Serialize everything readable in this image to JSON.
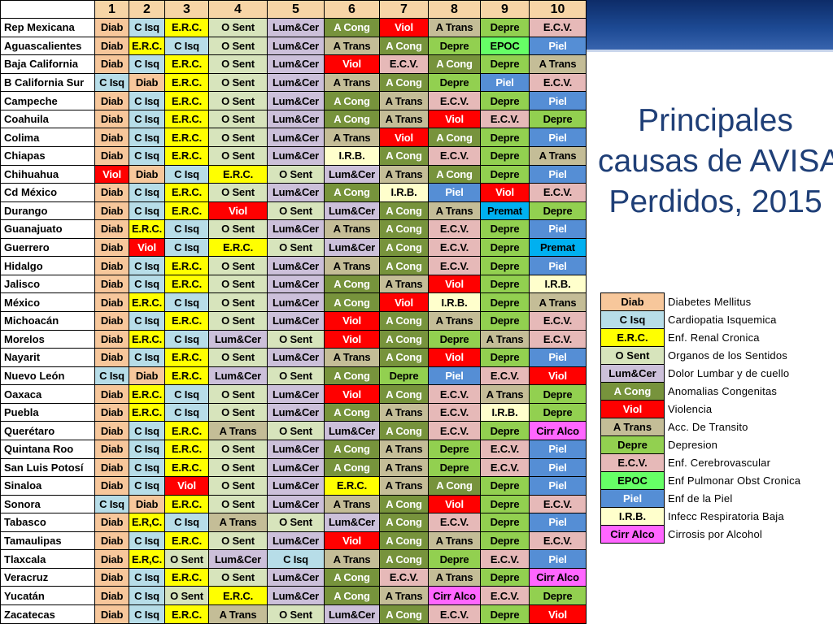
{
  "title_lines": [
    "Principales",
    "causas de AVISA",
    "Perdidos,  2015"
  ],
  "column_headers": [
    "1",
    "2",
    "3",
    "4",
    "5",
    "6",
    "7",
    "8",
    "9",
    "10"
  ],
  "rows": [
    {
      "state": "Rep Mexicana",
      "causes": [
        "Diab",
        "C Isq",
        "E.R.C.",
        "O Sent",
        "Lum&Cer",
        "A Cong",
        "Viol",
        "A Trans",
        "Depre",
        "E.C.V."
      ]
    },
    {
      "state": "Aguascalientes",
      "causes": [
        "Diab",
        "E.R.C.",
        "C Isq",
        "O Sent",
        "Lum&Cer",
        "A Trans",
        "A Cong",
        "Depre",
        "EPOC",
        "Piel"
      ]
    },
    {
      "state": "Baja California",
      "causes": [
        "Diab",
        "C Isq",
        "E.R.C.",
        "O Sent",
        "Lum&Cer",
        "Viol",
        "E.C.V.",
        "A Cong",
        "Depre",
        "A Trans"
      ]
    },
    {
      "state": "B California Sur",
      "causes": [
        "C Isq",
        "Diab",
        "E.R.C.",
        "O Sent",
        "Lum&Cer",
        "A Trans",
        "A Cong",
        "Depre",
        "Piel",
        "E.C.V."
      ]
    },
    {
      "state": "Campeche",
      "causes": [
        "Diab",
        "C Isq",
        "E.R.C.",
        "O Sent",
        "Lum&Cer",
        "A Cong",
        "A Trans",
        "E.C.V.",
        "Depre",
        "Piel"
      ]
    },
    {
      "state": "Coahuila",
      "causes": [
        "Diab",
        "C Isq",
        "E.R.C.",
        "O Sent",
        "Lum&Cer",
        "A Cong",
        "A Trans",
        "Viol",
        "E.C.V.",
        "Depre"
      ]
    },
    {
      "state": "Colima",
      "causes": [
        "Diab",
        "C Isq",
        "E.R.C.",
        "O Sent",
        "Lum&Cer",
        "A Trans",
        "Viol",
        "A Cong",
        "Depre",
        "Piel"
      ]
    },
    {
      "state": "Chiapas",
      "causes": [
        "Diab",
        "C Isq",
        "E.R.C.",
        "O Sent",
        "Lum&Cer",
        "I.R.B.",
        "A Cong",
        "E.C.V.",
        "Depre",
        "A Trans"
      ]
    },
    {
      "state": "Chihuahua",
      "causes": [
        "Viol",
        "Diab",
        "C Isq",
        "E.R.C.",
        "O Sent",
        "Lum&Cer",
        "A Trans",
        "A Cong",
        "Depre",
        "Piel"
      ]
    },
    {
      "state": "Cd México",
      "causes": [
        "Diab",
        "C Isq",
        "E.R.C.",
        "O Sent",
        "Lum&Cer",
        "A Cong",
        "I.R.B.",
        "Piel",
        "Viol",
        "E.C.V."
      ]
    },
    {
      "state": "Durango",
      "causes": [
        "Diab",
        "C Isq",
        "E.R.C.",
        "Viol",
        "O Sent",
        "Lum&Cer",
        "A Cong",
        "A Trans",
        "Premat",
        "Depre"
      ]
    },
    {
      "state": "Guanajuato",
      "causes": [
        "Diab",
        "E.R.C.",
        "C Isq",
        "O Sent",
        "Lum&Cer",
        "A Trans",
        "A Cong",
        "E.C.V.",
        "Depre",
        "Piel"
      ]
    },
    {
      "state": "Guerrero",
      "causes": [
        "Diab",
        "Viol",
        "C Isq",
        "E.R.C.",
        "O Sent",
        "Lum&Cer",
        "A Cong",
        "E.C.V.",
        "Depre",
        "Premat"
      ]
    },
    {
      "state": "Hidalgo",
      "causes": [
        "Diab",
        "C Isq",
        "E.R.C.",
        "O Sent",
        "Lum&Cer",
        "A Trans",
        "A Cong",
        "E.C.V.",
        "Depre",
        "Piel"
      ]
    },
    {
      "state": "Jalisco",
      "causes": [
        "Diab",
        "C Isq",
        "E.R.C.",
        "O Sent",
        "Lum&Cer",
        "A Cong",
        "A Trans",
        "Viol",
        "Depre",
        "I.R.B."
      ]
    },
    {
      "state": "México",
      "causes": [
        "Diab",
        "E.R.C.",
        "C Isq",
        "O Sent",
        "Lum&Cer",
        "A Cong",
        "Viol",
        "I.R.B.",
        "Depre",
        "A Trans"
      ]
    },
    {
      "state": "Michoacán",
      "causes": [
        "Diab",
        "C Isq",
        "E.R.C.",
        "O Sent",
        "Lum&Cer",
        "Viol",
        "A Cong",
        "A Trans",
        "Depre",
        "E.C.V."
      ]
    },
    {
      "state": "Morelos",
      "causes": [
        "Diab",
        "E.R.C.",
        "C Isq",
        "Lum&Cer",
        "O Sent",
        "Viol",
        "A Cong",
        "Depre",
        "A Trans",
        "E.C.V."
      ]
    },
    {
      "state": "Nayarit",
      "causes": [
        "Diab",
        "C Isq",
        "E.R.C.",
        "O Sent",
        "Lum&Cer",
        "A Trans",
        "A Cong",
        "Viol",
        "Depre",
        "Piel"
      ]
    },
    {
      "state": "Nuevo León",
      "causes": [
        "C Isq",
        "Diab",
        "E.R.C.",
        "Lum&Cer",
        "O Sent",
        "A Cong",
        "Depre",
        "Piel",
        "E.C.V.",
        "Viol"
      ]
    },
    {
      "state": "Oaxaca",
      "causes": [
        "Diab",
        "E.R.C.",
        "C Isq",
        "O Sent",
        "Lum&Cer",
        "Viol",
        "A Cong",
        "E.C.V.",
        "A Trans",
        "Depre"
      ]
    },
    {
      "state": "Puebla",
      "causes": [
        "Diab",
        "E.R.C.",
        "C Isq",
        "O Sent",
        "Lum&Cer",
        "A Cong",
        "A Trans",
        "E.C.V.",
        "I.R.B.",
        "Depre"
      ]
    },
    {
      "state": "Querétaro",
      "causes": [
        "Diab",
        "C Isq",
        "E.R.C.",
        "A Trans",
        "O Sent",
        "Lum&Cer",
        "A Cong",
        "E.C.V.",
        "Depre",
        "Cirr Alco"
      ]
    },
    {
      "state": "Quintana Roo",
      "causes": [
        "Diab",
        "C Isq",
        "E.R.C.",
        "O Sent",
        "Lum&Cer",
        "A Cong",
        "A Trans",
        "Depre",
        "E.C.V.",
        "Piel"
      ]
    },
    {
      "state": "San Luis Potosí",
      "causes": [
        "Diab",
        "C Isq",
        "E.R.C.",
        "O Sent",
        "Lum&Cer",
        "A Cong",
        "A Trans",
        "Depre",
        "E.C.V.",
        "Piel"
      ]
    },
    {
      "state": "Sinaloa",
      "causes": [
        "Diab",
        "C Isq",
        "Viol",
        "O Sent",
        "Lum&Cer",
        "E.R.C.",
        "A Trans",
        "A Cong",
        "Depre",
        "Piel"
      ]
    },
    {
      "state": "Sonora",
      "causes": [
        "C Isq",
        "Diab",
        "E.R.C.",
        "O Sent",
        "Lum&Cer",
        "A Trans",
        "A Cong",
        "Viol",
        "Depre",
        "E.C.V."
      ]
    },
    {
      "state": "Tabasco",
      "causes": [
        "Diab",
        "E.R,C.",
        "C Isq",
        "A Trans",
        "O Sent",
        "Lum&Cer",
        "A Cong",
        "E.C.V.",
        "Depre",
        "Piel"
      ]
    },
    {
      "state": "Tamaulipas",
      "causes": [
        "Diab",
        "C Isq",
        "E.R.C.",
        "O Sent",
        "Lum&Cer",
        "Viol",
        "A Cong",
        "A Trans",
        "Depre",
        "E.C.V."
      ]
    },
    {
      "state": "Tlaxcala",
      "causes": [
        "Diab",
        "E.R,C.",
        "O Sent",
        "Lum&Cer",
        "C Isq",
        "A Trans",
        "A Cong",
        "Depre",
        "E.C.V.",
        "Piel"
      ]
    },
    {
      "state": "Veracruz",
      "causes": [
        "Diab",
        "C Isq",
        "E.R.C.",
        "O Sent",
        "Lum&Cer",
        "A Cong",
        "E.C.V.",
        "A Trans",
        "Depre",
        "Cirr Alco"
      ]
    },
    {
      "state": "Yucatán",
      "causes": [
        "Diab",
        "C Isq",
        "O Sent",
        "E.R.C.",
        "Lum&Cer",
        "A Cong",
        "A Trans",
        "Cirr Alco",
        "E.C.V.",
        "Depre"
      ]
    },
    {
      "state": "Zacatecas",
      "causes": [
        "Diab",
        "C Isq",
        "E.R.C.",
        "A Trans",
        "O Sent",
        "Lum&Cer",
        "A Cong",
        "E.C.V.",
        "Depre",
        "Viol"
      ]
    }
  ],
  "legend": [
    {
      "code": "Diab",
      "label": "Diabetes Mellitus",
      "color": "#f7c79b"
    },
    {
      "code": "C Isq",
      "label": "Cardiopatia Isquemica",
      "color": "#b7dde8"
    },
    {
      "code": "E.R.C.",
      "label": "Enf. Renal Cronica",
      "color": "#ffff00"
    },
    {
      "code": "O Sent",
      "label": "Organos de los Sentidos",
      "color": "#d7e4bc"
    },
    {
      "code": "Lum&Cer",
      "label": "Dolor Lumbar y de cuello",
      "color": "#ccc0da"
    },
    {
      "code": "A Cong",
      "label": "Anomalias Congenitas",
      "color": "#77933c"
    },
    {
      "code": "Viol",
      "label": "Violencia",
      "color": "#ff0000"
    },
    {
      "code": "A Trans",
      "label": "Acc. De Transito",
      "color": "#c4bd97"
    },
    {
      "code": "Depre",
      "label": "Depresion",
      "color": "#92d050"
    },
    {
      "code": "E.C.V.",
      "label": "Enf. Cerebrovascular",
      "color": "#e6b9b8"
    },
    {
      "code": "EPOC",
      "label": "Enf Pulmonar Obst Cronica",
      "color": "#66ff66"
    },
    {
      "code": "Piel",
      "label": "Enf de la Piel",
      "color": "#558ed5"
    },
    {
      "code": "I.R.B.",
      "label": "Infecc Respiratoria Baja",
      "color": "#ffffcc"
    },
    {
      "code": "Cirr Alco",
      "label": "Cirrosis por Alcohol",
      "color": "#ff66ff"
    }
  ],
  "extra_colors": {
    "E.R,C.": "#ffff00",
    "Premat": "#00b0f0"
  },
  "text_colors": {
    "A Cong": "#ffffff",
    "Viol": "#ffffff",
    "Piel": "#ffffff",
    "Premat": "#000000"
  }
}
